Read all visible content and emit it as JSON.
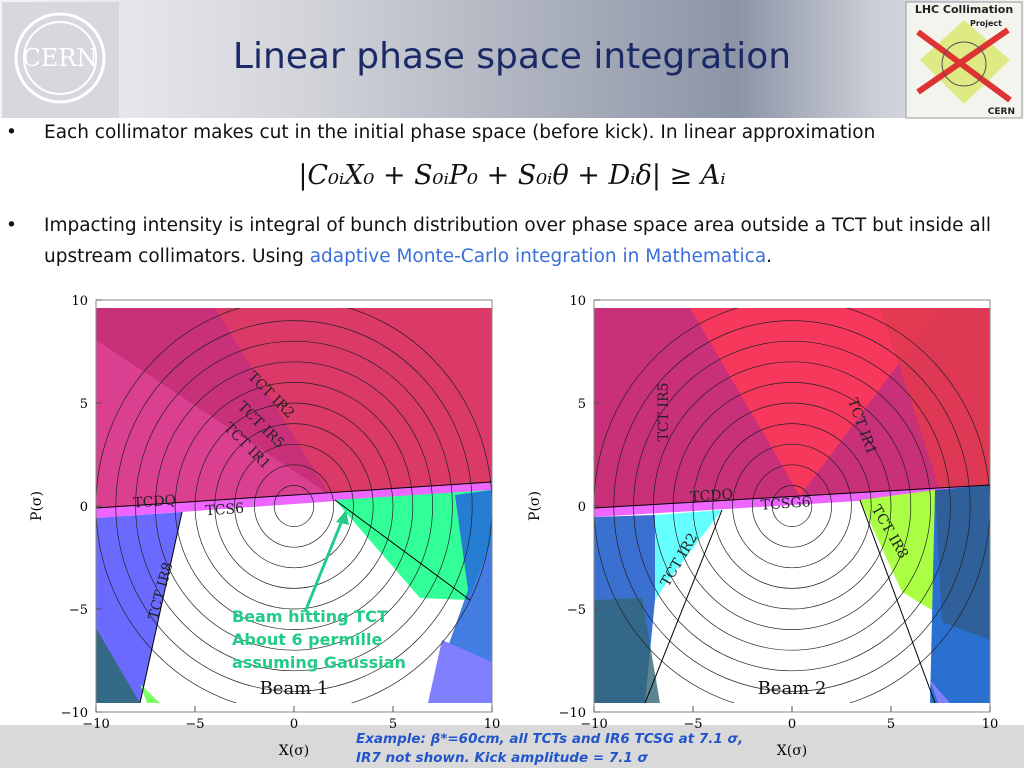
{
  "header": {
    "title": "Linear phase space integration",
    "left_logo": "CERN",
    "right_logo": {
      "title": "LHC Collimation",
      "subtitle": "Project",
      "org": "CERN"
    }
  },
  "bullets": [
    {
      "text": "Each collimator makes cut in the initial phase space (before kick). In linear approximation",
      "formula": "|C₀ᵢX₀ + S₀ᵢP₀ + S₀ᵢθ + Dᵢδ| ≥ Aᵢ"
    },
    {
      "text": "Impacting intensity is integral of bunch distribution over phase space area outside a TCT but inside all upstream collimators. Using ",
      "link": "adaptive Monte-Carlo integration in Mathematica",
      "tail": "."
    }
  ],
  "plots": [
    {
      "x_label": "X(σ)",
      "y_label": "P(σ)",
      "x_ticks": [
        "−10",
        "−5",
        "0",
        "5",
        "10"
      ],
      "y_ticks": [
        "−10",
        "−5",
        "0",
        "5",
        "10"
      ],
      "labels": [
        "TCT IR2",
        "TCT IR5",
        "TCT IR1",
        "TCDQ",
        "TCS6",
        "TCT IR8"
      ],
      "beam": "Beam 1"
    },
    {
      "x_label": "X(σ)",
      "y_label": "P(σ)",
      "x_ticks": [
        "−10",
        "−5",
        "0",
        "5",
        "10"
      ],
      "y_ticks": [
        "−10",
        "−5",
        "0",
        "5",
        "10"
      ],
      "labels": [
        "TCT IR5",
        "TCT IR1",
        "TCDQ",
        "TCSG6",
        "TCT IR8",
        "TCT IR2"
      ],
      "beam": "Beam 2"
    }
  ],
  "annotation": [
    "Beam hitting TCT",
    "About 6 permille",
    "assuming Gaussian"
  ],
  "footer": [
    "Example: β*=60cm, all TCTs and IR6 TCSG at 7.1 σ,",
    "IR7 not shown. Kick amplitude = 7.1 σ"
  ]
}
